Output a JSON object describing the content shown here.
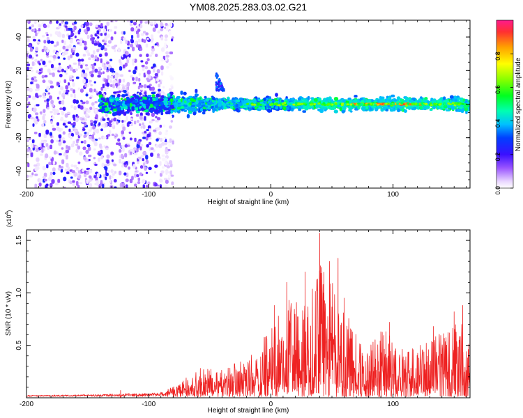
{
  "title": "YM08.2025.283.03.02.G21",
  "colorbar": {
    "label": "Normalized spectral amplitude",
    "ticks": [
      "0.0",
      "0.2",
      "0.4",
      "0.6",
      "0.8"
    ],
    "range": [
      0,
      1
    ]
  },
  "chart_data": [
    {
      "type": "heatmap",
      "title": "YM08.2025.283.03.02.G21",
      "xlabel": "Height of straight line (km)",
      "ylabel": "Frequency (Hz)",
      "xlim": [
        -200,
        163
      ],
      "ylim": [
        -50,
        50
      ],
      "xticks": [
        -200,
        -100,
        0,
        100
      ],
      "yticks": [
        -40,
        -20,
        0,
        20,
        40
      ],
      "xtick_labels": [
        "-200",
        "-100",
        "0",
        "100"
      ],
      "ytick_labels": [
        "-40",
        "-20",
        "0",
        "20",
        "40"
      ],
      "colorscale": "rainbow (0 = white/violet, 1 = red)",
      "features": [
        {
          "desc": "scattered noise",
          "x_range": [
            -200,
            -80
          ],
          "freq_range": [
            -50,
            50
          ],
          "amplitude": 0.15
        },
        {
          "desc": "main signal band",
          "x_range": [
            -140,
            163
          ],
          "center_freq": 0,
          "spread_hz": 7
        },
        {
          "desc": "high-amplitude trace",
          "x_range": [
            65,
            125
          ],
          "center_freq": 0,
          "amplitude": 0.95
        },
        {
          "desc": "upward streak",
          "x_range": [
            -45,
            -38
          ],
          "freq_range": [
            8,
            20
          ],
          "amplitude": 0.3
        }
      ]
    },
    {
      "type": "line",
      "xlabel": "Height of straight line (km)",
      "ylabel": "SNR (10 * v/v)",
      "y_multiplier": "(x10^4)",
      "multiplier_base": "(x10",
      "multiplier_exp": "4",
      "multiplier_close": ")",
      "xlim": [
        -200,
        163
      ],
      "ylim": [
        0,
        1.6
      ],
      "xticks": [
        -200,
        -100,
        0,
        100
      ],
      "yticks": [
        0.5,
        1.0,
        1.5
      ],
      "xtick_labels": [
        "-200",
        "-100",
        "0",
        "100"
      ],
      "ytick_labels": [
        "0.5",
        "1.0",
        "1.5"
      ],
      "color": "#ee2222",
      "envelope": [
        {
          "x": -200,
          "y": 0.02
        },
        {
          "x": -150,
          "y": 0.03
        },
        {
          "x": -120,
          "y": 0.05
        },
        {
          "x": -100,
          "y": 0.05
        },
        {
          "x": -85,
          "y": 0.08
        },
        {
          "x": -75,
          "y": 0.15
        },
        {
          "x": -60,
          "y": 0.32
        },
        {
          "x": -40,
          "y": 0.32
        },
        {
          "x": -20,
          "y": 0.42
        },
        {
          "x": 0,
          "y": 0.8
        },
        {
          "x": 15,
          "y": 1.1
        },
        {
          "x": 30,
          "y": 1.05
        },
        {
          "x": 40,
          "y": 1.57
        },
        {
          "x": 50,
          "y": 1.32
        },
        {
          "x": 60,
          "y": 1.0
        },
        {
          "x": 75,
          "y": 0.62
        },
        {
          "x": 95,
          "y": 0.75
        },
        {
          "x": 110,
          "y": 0.5
        },
        {
          "x": 125,
          "y": 0.6
        },
        {
          "x": 140,
          "y": 0.72
        },
        {
          "x": 155,
          "y": 0.85
        },
        {
          "x": 163,
          "y": 0.65
        }
      ],
      "peaks": [
        {
          "x": -123,
          "y": 0.07
        },
        {
          "x": 3,
          "y": 0.88
        },
        {
          "x": 13,
          "y": 1.1
        },
        {
          "x": 28,
          "y": 1.2
        },
        {
          "x": 40,
          "y": 1.57
        },
        {
          "x": 43,
          "y": 1.0
        },
        {
          "x": 48,
          "y": 1.3
        },
        {
          "x": 55,
          "y": 1.33
        },
        {
          "x": 60,
          "y": 0.95
        },
        {
          "x": 90,
          "y": 0.63
        },
        {
          "x": 97,
          "y": 0.72
        },
        {
          "x": 133,
          "y": 0.68
        },
        {
          "x": 150,
          "y": 0.82
        },
        {
          "x": 157,
          "y": 0.88
        }
      ]
    }
  ]
}
